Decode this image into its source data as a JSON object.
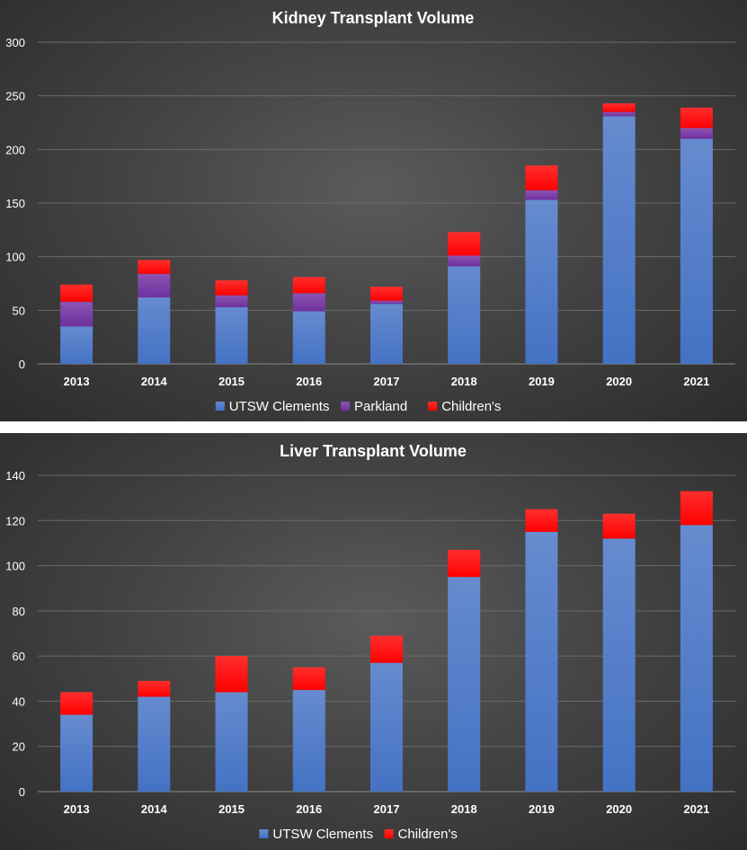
{
  "chart_data": [
    {
      "type": "bar",
      "stacked": true,
      "title": "Kidney Transplant Volume",
      "categories": [
        "2013",
        "2014",
        "2015",
        "2016",
        "2017",
        "2018",
        "2019",
        "2020",
        "2021"
      ],
      "series": [
        {
          "name": "UTSW Clements",
          "values": [
            35,
            62,
            53,
            49,
            56,
            91,
            153,
            231,
            210
          ],
          "color": "#4472C4"
        },
        {
          "name": "Parkland",
          "values": [
            23,
            22,
            11,
            17,
            3,
            10,
            9,
            4,
            10
          ],
          "color": "#7030A0"
        },
        {
          "name": "Children's",
          "values": [
            16,
            13,
            14,
            15,
            13,
            22,
            23,
            8,
            19
          ],
          "color": "#FF0000"
        }
      ],
      "ylim": [
        0,
        300
      ],
      "yticks": [
        0,
        50,
        100,
        150,
        200,
        250,
        300
      ],
      "grid": true,
      "legend_position": "bottom"
    },
    {
      "type": "bar",
      "stacked": true,
      "title": "Liver Transplant Volume",
      "categories": [
        "2013",
        "2014",
        "2015",
        "2016",
        "2017",
        "2018",
        "2019",
        "2020",
        "2021"
      ],
      "series": [
        {
          "name": "UTSW Clements",
          "values": [
            34,
            42,
            44,
            45,
            57,
            95,
            115,
            112,
            118
          ],
          "color": "#4472C4"
        },
        {
          "name": "Children's",
          "values": [
            10,
            7,
            16,
            10,
            12,
            12,
            10,
            11,
            15
          ],
          "color": "#FF0000"
        }
      ],
      "ylim": [
        0,
        140
      ],
      "yticks": [
        0,
        20,
        40,
        60,
        80,
        100,
        120,
        140
      ],
      "grid": true,
      "legend_position": "bottom"
    }
  ]
}
